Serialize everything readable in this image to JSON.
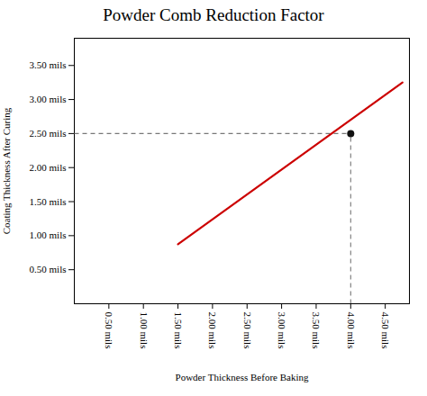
{
  "chart_data": {
    "type": "line",
    "title": "Powder Comb Reduction Factor",
    "xlabel": "Powder Thickness Before Baking",
    "ylabel": "Coating Thickness After Curing",
    "xlim": [
      0.0,
      4.85
    ],
    "ylim": [
      0.0,
      3.9
    ],
    "xticks": [
      {
        "value": 0.5,
        "label": "0.50 mils"
      },
      {
        "value": 1.0,
        "label": "1.00 mils"
      },
      {
        "value": 1.5,
        "label": "1.50 mils"
      },
      {
        "value": 2.0,
        "label": "2.00 mils"
      },
      {
        "value": 2.5,
        "label": "2.50 mils"
      },
      {
        "value": 3.0,
        "label": "3.00 mils"
      },
      {
        "value": 3.5,
        "label": "3.50 mils"
      },
      {
        "value": 4.0,
        "label": "4.00 mils"
      },
      {
        "value": 4.5,
        "label": "4.50 mils"
      }
    ],
    "yticks": [
      {
        "value": 0.5,
        "label": "0.50 mils"
      },
      {
        "value": 1.0,
        "label": "1.00 mils"
      },
      {
        "value": 1.5,
        "label": "1.50 mils"
      },
      {
        "value": 2.0,
        "label": "2.00 mils"
      },
      {
        "value": 2.5,
        "label": "2.50 mils"
      },
      {
        "value": 3.0,
        "label": "3.00 mils"
      },
      {
        "value": 3.5,
        "label": "3.50 mils"
      }
    ],
    "grid": false,
    "series": [
      {
        "type": "line",
        "color": "#cc0000",
        "line_style": "solid",
        "x": [
          1.5,
          4.75
        ],
        "values": [
          0.875,
          3.25
        ]
      },
      {
        "type": "scatter",
        "color": "#111111",
        "marker": "circle",
        "x": [
          4.0
        ],
        "values": [
          2.5
        ]
      }
    ],
    "dashed_lines": {
      "color": "#777777",
      "line_style": "dashed"
    }
  }
}
